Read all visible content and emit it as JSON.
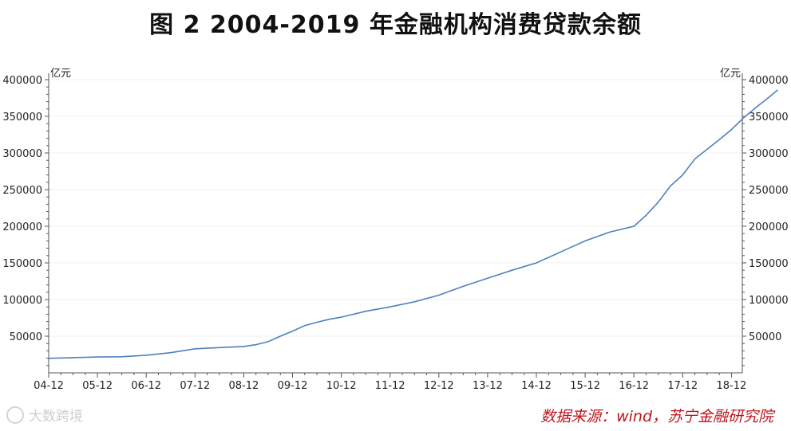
{
  "title": "图 2 2004-2019 年金融机构消费贷款余额",
  "source": "数据来源：wind，苏宁金融研究院",
  "watermark": "大数跨境",
  "colors": {
    "line": "#4f81bd",
    "axis": "#555555",
    "grid": "#f2f2f2",
    "source": "#c0141c"
  },
  "chart_data": {
    "type": "line",
    "title": "图 2 2004-2019 年金融机构消费贷款余额",
    "left_unit": "亿元",
    "right_unit": "亿元",
    "categories": [
      "04-12",
      "05-12",
      "06-12",
      "07-12",
      "08-12",
      "09-12",
      "10-12",
      "11-12",
      "12-12",
      "13-12",
      "14-12",
      "15-12",
      "16-12",
      "17-12",
      "18-12"
    ],
    "y_ticks": [
      50000,
      100000,
      150000,
      200000,
      250000,
      300000,
      350000,
      400000
    ],
    "ylim": [
      0,
      400000
    ],
    "grid": true,
    "series": [
      {
        "x": [
          0,
          0.5,
          1,
          1.5,
          2,
          2.5,
          3,
          3.5,
          4,
          4.25,
          4.5,
          4.75,
          5,
          5.25,
          5.5,
          5.75,
          6,
          6.5,
          7,
          7.5,
          8,
          8.5,
          9,
          9.5,
          10,
          10.5,
          11,
          11.5,
          12,
          12.25,
          12.5,
          12.75,
          13,
          13.25,
          13.5,
          13.75,
          14,
          14.25,
          14.5,
          14.75,
          14.95
        ],
        "values": [
          19800,
          20800,
          21600,
          22000,
          24000,
          27500,
          32800,
          34500,
          36000,
          38500,
          42500,
          50000,
          57000,
          64500,
          69000,
          73000,
          76000,
          84000,
          90000,
          97000,
          106000,
          118000,
          129000,
          140000,
          150000,
          165000,
          180000,
          192000,
          200000,
          215000,
          233000,
          255000,
          270000,
          292000,
          305000,
          318000,
          332000,
          348000,
          362000,
          375000,
          386000
        ]
      }
    ]
  }
}
